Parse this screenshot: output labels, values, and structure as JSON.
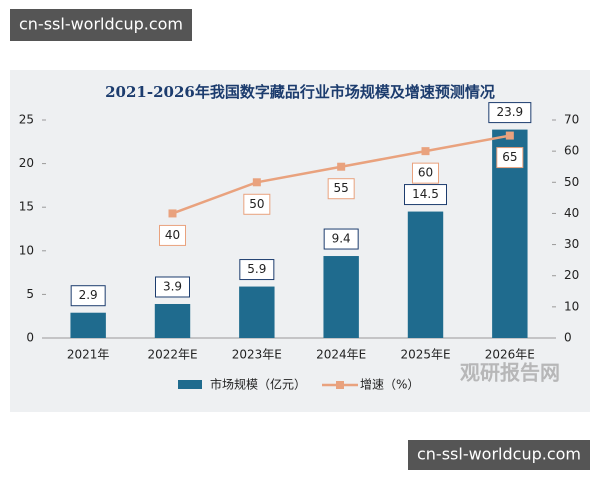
{
  "chart_data": {
    "type": "bar-line",
    "title": "2021-2026年我国数字藏品行业市场规模及增速预测情况",
    "categories": [
      "2021年",
      "2022年E",
      "2023年E",
      "2024年E",
      "2025年E",
      "2026年E"
    ],
    "series": [
      {
        "name": "市场规模（亿元）",
        "color": "#1f6b8e",
        "type": "bar",
        "values": [
          2.9,
          3.9,
          5.9,
          9.4,
          14.5,
          23.9
        ]
      },
      {
        "name": "增速（%）",
        "color": "#e9a27e",
        "type": "line",
        "axis": "y2",
        "values": [
          null,
          40,
          50,
          55,
          60,
          65
        ]
      }
    ],
    "ylim": [
      0,
      25
    ],
    "yticks": [
      0,
      5,
      10,
      15,
      20,
      25
    ],
    "y2lim": [
      0,
      70
    ],
    "y2ticks": [
      0,
      10,
      20,
      30,
      40,
      50,
      60,
      70
    ],
    "legend": "bottom"
  },
  "watermarks": [
    "cn-ssl-worldcup.com",
    "cn-ssl-worldcup.com",
    "观研报告网"
  ]
}
